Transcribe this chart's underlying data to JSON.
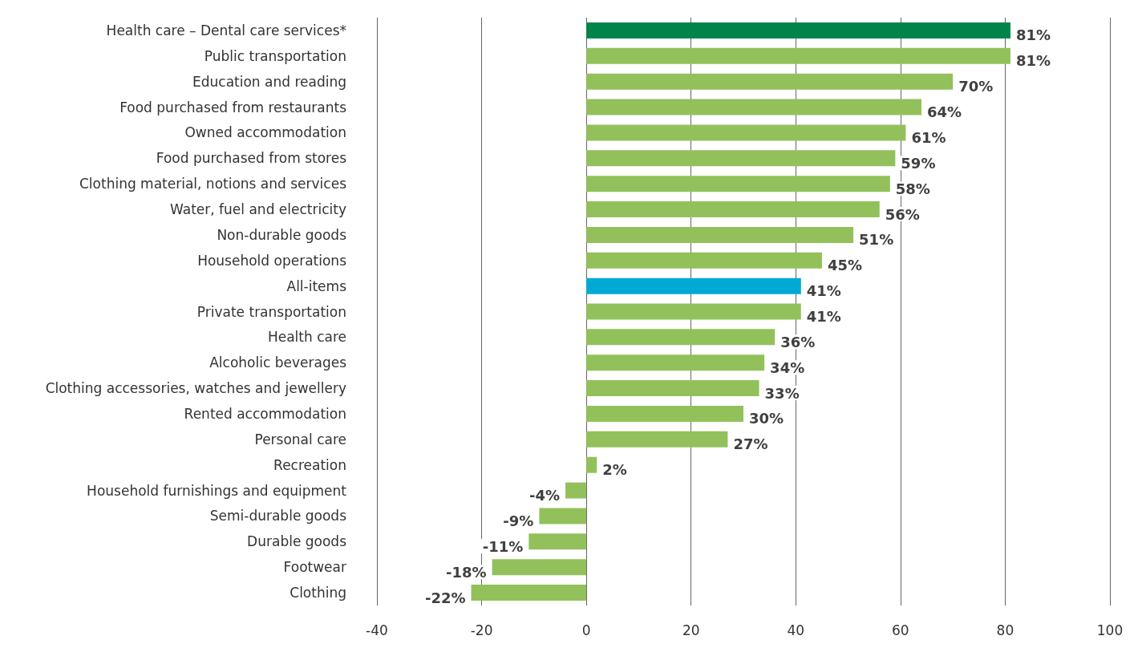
{
  "chart_data": {
    "type": "bar",
    "orientation": "horizontal",
    "categories": [
      "Health care – Dental care services*",
      "Public transportation",
      "Education and reading",
      "Food purchased from restaurants",
      "Owned accommodation",
      "Food purchased from stores",
      "Clothing material, notions and services",
      "Water, fuel and electricity",
      "Non-durable goods",
      "Household operations",
      "All-items",
      "Private transportation",
      "Health care",
      "Alcoholic beverages",
      "Clothing accessories, watches and jewellery",
      "Rented accommodation",
      "Personal care",
      "Recreation",
      "Household furnishings and equipment",
      "Semi-durable goods",
      "Durable goods",
      "Footwear",
      "Clothing"
    ],
    "values": [
      81,
      81,
      70,
      64,
      61,
      59,
      58,
      56,
      51,
      45,
      41,
      41,
      36,
      34,
      33,
      30,
      27,
      2,
      -4,
      -9,
      -11,
      -18,
      -22
    ],
    "value_labels": [
      "81%",
      "81%",
      "70%",
      "64%",
      "61%",
      "59%",
      "58%",
      "56%",
      "51%",
      "45%",
      "41%",
      "41%",
      "36%",
      "34%",
      "33%",
      "30%",
      "27%",
      "2%",
      "-4%",
      "-9%",
      "-11%",
      "-18%",
      "-22%"
    ],
    "colors": [
      "#00844a",
      "#92c15b",
      "#92c15b",
      "#92c15b",
      "#92c15b",
      "#92c15b",
      "#92c15b",
      "#92c15b",
      "#92c15b",
      "#92c15b",
      "#00a9d4",
      "#92c15b",
      "#92c15b",
      "#92c15b",
      "#92c15b",
      "#92c15b",
      "#92c15b",
      "#92c15b",
      "#92c15b",
      "#92c15b",
      "#92c15b",
      "#92c15b",
      "#92c15b"
    ],
    "xlim": [
      -40,
      100
    ],
    "xticks": [
      -40,
      -20,
      0,
      20,
      40,
      60,
      80,
      100
    ],
    "grid": "x"
  }
}
